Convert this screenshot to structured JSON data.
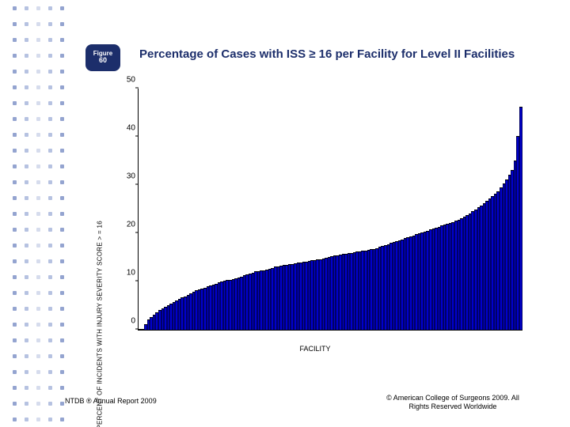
{
  "sidebar_dots": {
    "cols": 5,
    "rows": 27,
    "x_start": 16,
    "x_step": 15,
    "y_start": 8,
    "y_step": 20,
    "colors": [
      "#3d5aa9",
      "#7a8fc8",
      "#b4c0df",
      "#7a8fc8",
      "#3d5aa9"
    ]
  },
  "badge": {
    "line1": "Figure",
    "line2": "60"
  },
  "title": "Percentage of Cases with ISS ≥ 16 per Facility for Level II Facilities",
  "chart": {
    "type": "bar",
    "ylabel": "PERCENT OF INCIDENTS WITH INJURY SEVERITY SCORE > = 16",
    "xlabel": "FACILITY",
    "ylim": [
      0,
      50
    ],
    "yticks": [
      0,
      10,
      20,
      30,
      40,
      50
    ],
    "bar_fill": "#0000cc",
    "bar_edge": "#000000",
    "background": "#ffffff",
    "values": [
      0,
      0,
      1,
      2,
      2.5,
      3,
      3.5,
      4,
      4.3,
      4.6,
      5,
      5.3,
      5.6,
      5.9,
      6.2,
      6.5,
      6.8,
      7.1,
      7.4,
      7.7,
      8,
      8.2,
      8.4,
      8.6,
      8.8,
      9,
      9.2,
      9.4,
      9.6,
      9.8,
      10,
      10.1,
      10.2,
      10.3,
      10.5,
      10.7,
      10.9,
      11.1,
      11.3,
      11.5,
      11.7,
      11.9,
      12,
      12.1,
      12.2,
      12.3,
      12.5,
      12.7,
      12.9,
      13,
      13.1,
      13.2,
      13.3,
      13.4,
      13.5,
      13.6,
      13.7,
      13.8,
      13.9,
      14,
      14.1,
      14.2,
      14.3,
      14.4,
      14.5,
      14.6,
      14.8,
      15,
      15.1,
      15.2,
      15.3,
      15.4,
      15.5,
      15.6,
      15.7,
      15.8,
      15.9,
      16,
      16.1,
      16.2,
      16.3,
      16.4,
      16.5,
      16.6,
      16.8,
      17,
      17.2,
      17.4,
      17.6,
      17.8,
      18,
      18.2,
      18.4,
      18.6,
      18.8,
      19,
      19.2,
      19.4,
      19.6,
      19.8,
      20,
      20.2,
      20.4,
      20.6,
      20.8,
      21,
      21.2,
      21.4,
      21.6,
      21.8,
      22,
      22.2,
      22.4,
      22.7,
      23,
      23.3,
      23.6,
      24,
      24.4,
      24.8,
      25.2,
      25.6,
      26,
      26.5,
      27,
      27.5,
      28,
      28.6,
      29.4,
      30.2,
      31,
      32,
      33,
      35,
      40,
      46
    ]
  },
  "footer": {
    "left": "NTDB ® Annual Report 2009",
    "right_line1": "© American College of Surgeons 2009.  All",
    "right_line2": "Rights Reserved Worldwide"
  }
}
